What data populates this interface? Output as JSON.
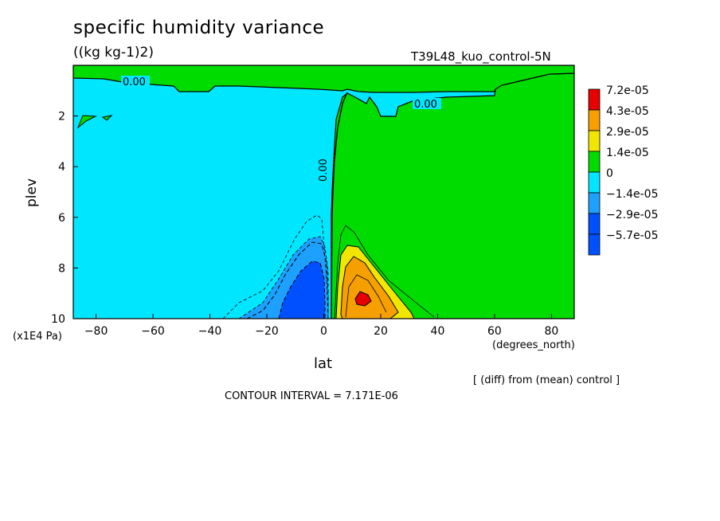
{
  "chart_data": {
    "type": "contour",
    "title": "specific humidity variance",
    "units": "((kg kg-1)2)",
    "run_label": "T39L48_kuo_control-5N",
    "xlabel": "lat",
    "x_units": "(degrees_north)",
    "ylabel": "plev",
    "y_units": "(x1E4 Pa)",
    "xlim": [
      -88,
      88
    ],
    "ylim": [
      10,
      0
    ],
    "x_ticks": [
      -80,
      -60,
      -40,
      -20,
      0,
      20,
      40,
      60,
      80
    ],
    "y_ticks": [
      2,
      4,
      6,
      8,
      10
    ],
    "footer_diff": "[ (diff) from (mean) control ]",
    "contour_interval": "CONTOUR INTERVAL = 7.171E-06",
    "contour_labels": [
      "0.00",
      "0.00",
      "0.00"
    ],
    "legend": [
      {
        "label": "7.2e-05",
        "color": "#e60000"
      },
      {
        "label": "4.3e-05",
        "color": "#f5a000"
      },
      {
        "label": "2.9e-05",
        "color": "#f0e600"
      },
      {
        "label": "1.4e-05",
        "color": "#00dc00"
      },
      {
        "label": "0",
        "color": "#00e6ff"
      },
      {
        "label": "-1.4e-05",
        "color": "#1ea0ff"
      },
      {
        "label": "-2.9e-05",
        "color": "#0050ff"
      },
      {
        "label": "-5.7e-05",
        "color": "#0050ff"
      }
    ],
    "regions": {
      "negative_core": {
        "lat_center": -5,
        "plev_center": 9,
        "sign": "negative"
      },
      "positive_core": {
        "lat_center": 14,
        "plev_center": 9.2,
        "sign": "positive"
      },
      "southern_hemisphere": {
        "sign": "slightly negative"
      },
      "northern_hemisphere": {
        "sign": "slightly positive"
      }
    }
  }
}
